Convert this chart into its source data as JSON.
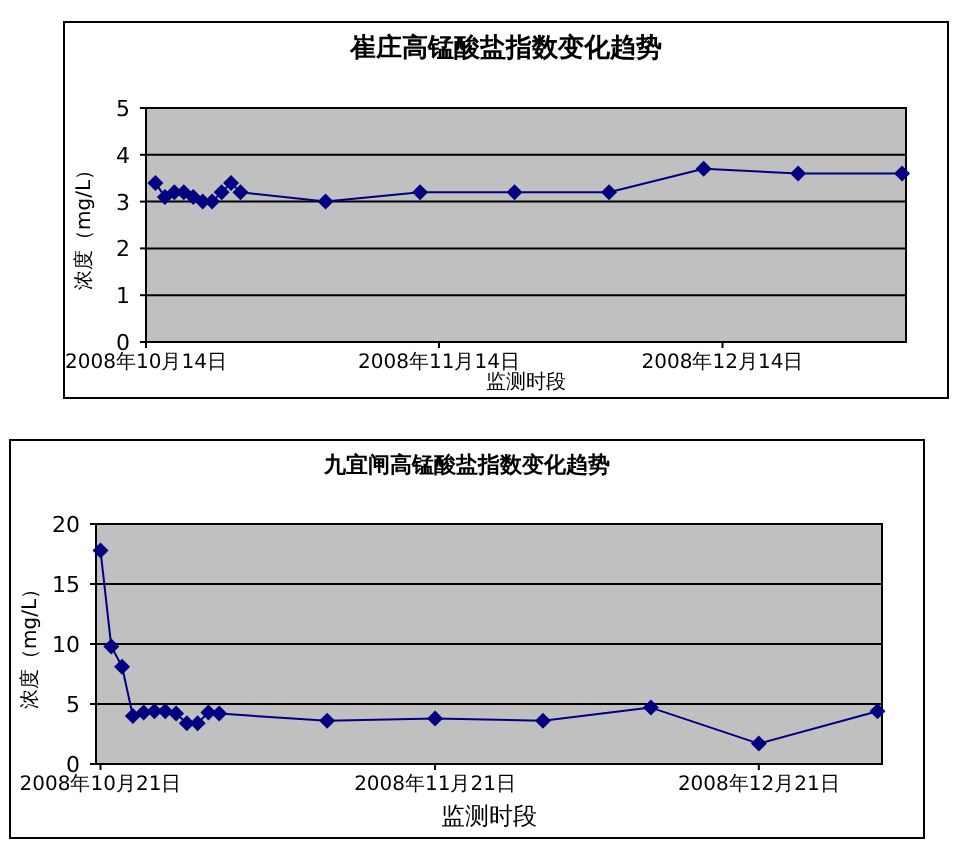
{
  "chart_data": [
    {
      "type": "line",
      "title": "崔庄高锰酸盐指数变化趋势",
      "xlabel": "监测时段",
      "ylabel": "浓度（mg/L）",
      "color": "#000080",
      "marker": "diamond",
      "grid": "y",
      "x": [
        "2008-10-15",
        "2008-10-16",
        "2008-10-17",
        "2008-10-18",
        "2008-10-19",
        "2008-10-20",
        "2008-10-21",
        "2008-10-22",
        "2008-10-23",
        "2008-10-24",
        "2008-11-02",
        "2008-11-12",
        "2008-11-22",
        "2008-12-02",
        "2008-12-12",
        "2008-12-22",
        "2009-01-02"
      ],
      "values": [
        3.4,
        3.1,
        3.2,
        3.2,
        3.1,
        3.0,
        3.0,
        3.2,
        3.4,
        3.2,
        3.0,
        3.2,
        3.2,
        3.2,
        3.7,
        3.6,
        3.6
      ],
      "xlim": [
        "2008-10-14",
        "2009-01-02T10:00"
      ],
      "xticks": [
        {
          "value": "2008-10-14",
          "label": "2008年10月14日"
        },
        {
          "value": "2008-11-14",
          "label": "2008年11月14日"
        },
        {
          "value": "2008-12-14",
          "label": "2008年12月14日"
        }
      ],
      "ylim": [
        0,
        5
      ],
      "yticks": [
        0,
        1,
        2,
        3,
        4,
        5
      ]
    },
    {
      "type": "line",
      "title": "九宜闸高锰酸盐指数变化趋势",
      "xlabel": "监测时段",
      "ylabel": "浓度（mg/L）",
      "color": "#000080",
      "marker": "diamond",
      "grid": "y",
      "x": [
        "2008-10-21",
        "2008-10-22",
        "2008-10-23",
        "2008-10-24",
        "2008-10-25",
        "2008-10-26",
        "2008-10-27",
        "2008-10-28",
        "2008-10-29",
        "2008-10-30",
        "2008-10-31",
        "2008-11-01",
        "2008-11-11",
        "2008-11-21",
        "2008-12-01",
        "2008-12-11",
        "2008-12-21",
        "2009-01-01"
      ],
      "values": [
        17.8,
        9.8,
        8.1,
        4.0,
        4.3,
        4.4,
        4.4,
        4.2,
        3.4,
        3.4,
        4.3,
        4.2,
        3.6,
        3.8,
        3.6,
        4.7,
        1.7,
        4.4
      ],
      "xlim": [
        "2008-10-20T14:00",
        "2009-01-01T10:00"
      ],
      "xticks": [
        {
          "value": "2008-10-21",
          "label": "2008年10月21日"
        },
        {
          "value": "2008-11-21",
          "label": "2008年11月21日"
        },
        {
          "value": "2008-12-21",
          "label": "2008年12月21日"
        }
      ],
      "ylim": [
        0,
        20
      ],
      "yticks": [
        0,
        5,
        10,
        15,
        20
      ]
    }
  ]
}
